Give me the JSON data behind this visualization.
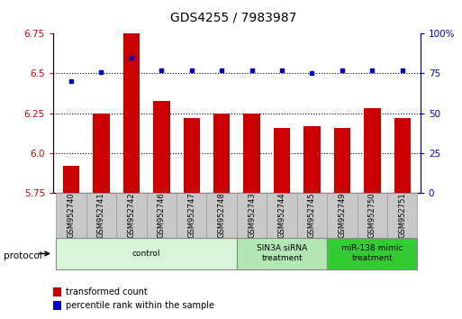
{
  "title": "GDS4255 / 7983987",
  "samples": [
    "GSM952740",
    "GSM952741",
    "GSM952742",
    "GSM952746",
    "GSM952747",
    "GSM952748",
    "GSM952743",
    "GSM952744",
    "GSM952745",
    "GSM952749",
    "GSM952750",
    "GSM952751"
  ],
  "bar_values": [
    5.92,
    6.25,
    6.75,
    6.33,
    6.22,
    6.25,
    6.25,
    6.16,
    6.17,
    6.16,
    6.28,
    6.22
  ],
  "percentile_values": [
    70,
    76,
    85,
    77,
    77,
    77,
    77,
    77,
    75,
    77,
    77,
    77
  ],
  "bar_color": "#cc0000",
  "percentile_color": "#0000cc",
  "ylim_left": [
    5.75,
    6.75
  ],
  "ylim_right": [
    0,
    100
  ],
  "yticks_left": [
    5.75,
    6.0,
    6.25,
    6.5,
    6.75
  ],
  "yticks_right": [
    0,
    25,
    50,
    75,
    100
  ],
  "grid_values": [
    6.0,
    6.25,
    6.5
  ],
  "protocol_groups": [
    {
      "label": "control",
      "start": 0,
      "end": 6,
      "color": "#d6f5d6",
      "border": "#888888"
    },
    {
      "label": "SIN3A siRNA\ntreatment",
      "start": 6,
      "end": 9,
      "color": "#b3e6b3",
      "border": "#888888"
    },
    {
      "label": "miR-138 mimic\ntreatment",
      "start": 9,
      "end": 12,
      "color": "#33cc33",
      "border": "#888888"
    }
  ],
  "legend_items": [
    {
      "label": "transformed count",
      "color": "#cc0000"
    },
    {
      "label": "percentile rank within the sample",
      "color": "#0000cc"
    }
  ],
  "protocol_label": "protocol",
  "bar_bottom": 5.75,
  "title_fontsize": 10,
  "tick_fontsize": 7.5,
  "axis_label_color_left": "#cc0000",
  "axis_label_color_right": "#0000cc",
  "sample_box_color": "#c8c8c8",
  "bar_width": 0.55
}
